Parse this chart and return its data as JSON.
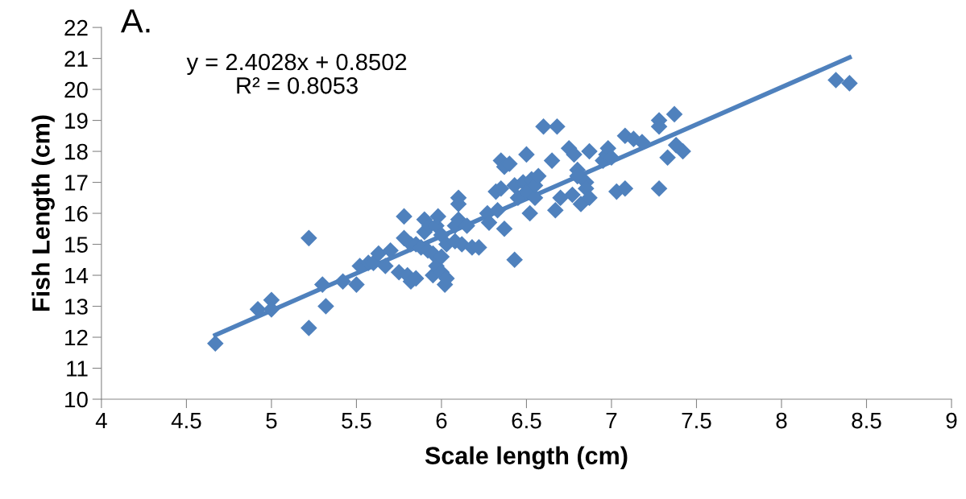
{
  "chart_data": {
    "type": "scatter",
    "title": "A.",
    "xlabel": "Scale length (cm)",
    "ylabel": "Fish Length (cm)",
    "annotations": [
      "y = 2.4028x + 0.8502\nR² = 0.8053"
    ],
    "xlim": [
      4,
      9
    ],
    "xticks": [
      4,
      4.5,
      5,
      5.5,
      6,
      6.5,
      7,
      7.5,
      8,
      8.5,
      9
    ],
    "ylim": [
      10,
      22
    ],
    "yticks": [
      10,
      11,
      12,
      13,
      14,
      15,
      16,
      17,
      18,
      19,
      20,
      21,
      22
    ],
    "grid": false,
    "series": [
      {
        "marker": "diamond",
        "color": "#4f81bd",
        "x": [
          4.67,
          4.92,
          5.0,
          5.0,
          5.22,
          5.22,
          5.3,
          5.32,
          5.42,
          5.5,
          5.52,
          5.57,
          5.6,
          5.63,
          5.67,
          5.7,
          5.75,
          5.78,
          5.78,
          5.8,
          5.82,
          5.82,
          5.85,
          5.85,
          5.88,
          5.9,
          5.9,
          5.92,
          5.93,
          5.95,
          5.95,
          5.97,
          5.97,
          5.98,
          6.0,
          6.0,
          6.0,
          6.02,
          6.03,
          6.03,
          6.08,
          6.08,
          6.1,
          6.1,
          6.1,
          6.12,
          6.15,
          6.18,
          6.22,
          6.27,
          6.28,
          6.32,
          6.33,
          6.35,
          6.35,
          6.37,
          6.37,
          6.4,
          6.43,
          6.43,
          6.45,
          6.48,
          6.5,
          6.5,
          6.52,
          6.53,
          6.55,
          6.55,
          6.57,
          6.6,
          6.65,
          6.67,
          6.68,
          6.7,
          6.75,
          6.77,
          6.78,
          6.8,
          6.8,
          6.82,
          6.85,
          6.85,
          6.87,
          6.87,
          6.95,
          6.97,
          6.98,
          7.0,
          7.03,
          7.08,
          7.08,
          7.13,
          7.18,
          7.28,
          7.28,
          7.28,
          7.33,
          7.37,
          7.38,
          7.42,
          8.32,
          8.4
        ],
        "values": [
          11.8,
          12.9,
          13.2,
          12.9,
          15.2,
          12.3,
          13.7,
          13.0,
          13.8,
          13.7,
          14.3,
          14.4,
          14.4,
          14.7,
          14.3,
          14.8,
          14.1,
          15.9,
          15.2,
          14.0,
          13.8,
          15.0,
          13.9,
          15.0,
          14.9,
          15.8,
          15.4,
          14.8,
          15.6,
          14.7,
          14.0,
          15.6,
          14.3,
          15.9,
          15.3,
          14.6,
          14.1,
          13.7,
          13.9,
          15.0,
          15.6,
          15.1,
          16.5,
          16.3,
          15.8,
          15.0,
          15.6,
          14.9,
          14.9,
          16.0,
          15.7,
          16.7,
          16.1,
          16.8,
          17.7,
          17.5,
          15.5,
          17.6,
          16.9,
          14.5,
          16.5,
          17.0,
          17.9,
          16.7,
          16.0,
          17.1,
          16.5,
          16.9,
          17.2,
          18.8,
          17.7,
          16.1,
          18.8,
          16.5,
          18.1,
          16.6,
          17.9,
          17.4,
          17.2,
          16.3,
          17.0,
          16.8,
          18.0,
          16.5,
          17.7,
          17.9,
          18.1,
          17.8,
          16.7,
          18.5,
          16.8,
          18.4,
          18.3,
          19.0,
          18.8,
          16.8,
          17.8,
          19.2,
          18.2,
          18.0,
          20.3,
          20.2
        ]
      },
      {
        "type": "line",
        "marker": "none",
        "color": "#4f81bd",
        "x": [
          4.67,
          8.4
        ],
        "values": [
          12.07,
          21.03
        ]
      }
    ]
  }
}
